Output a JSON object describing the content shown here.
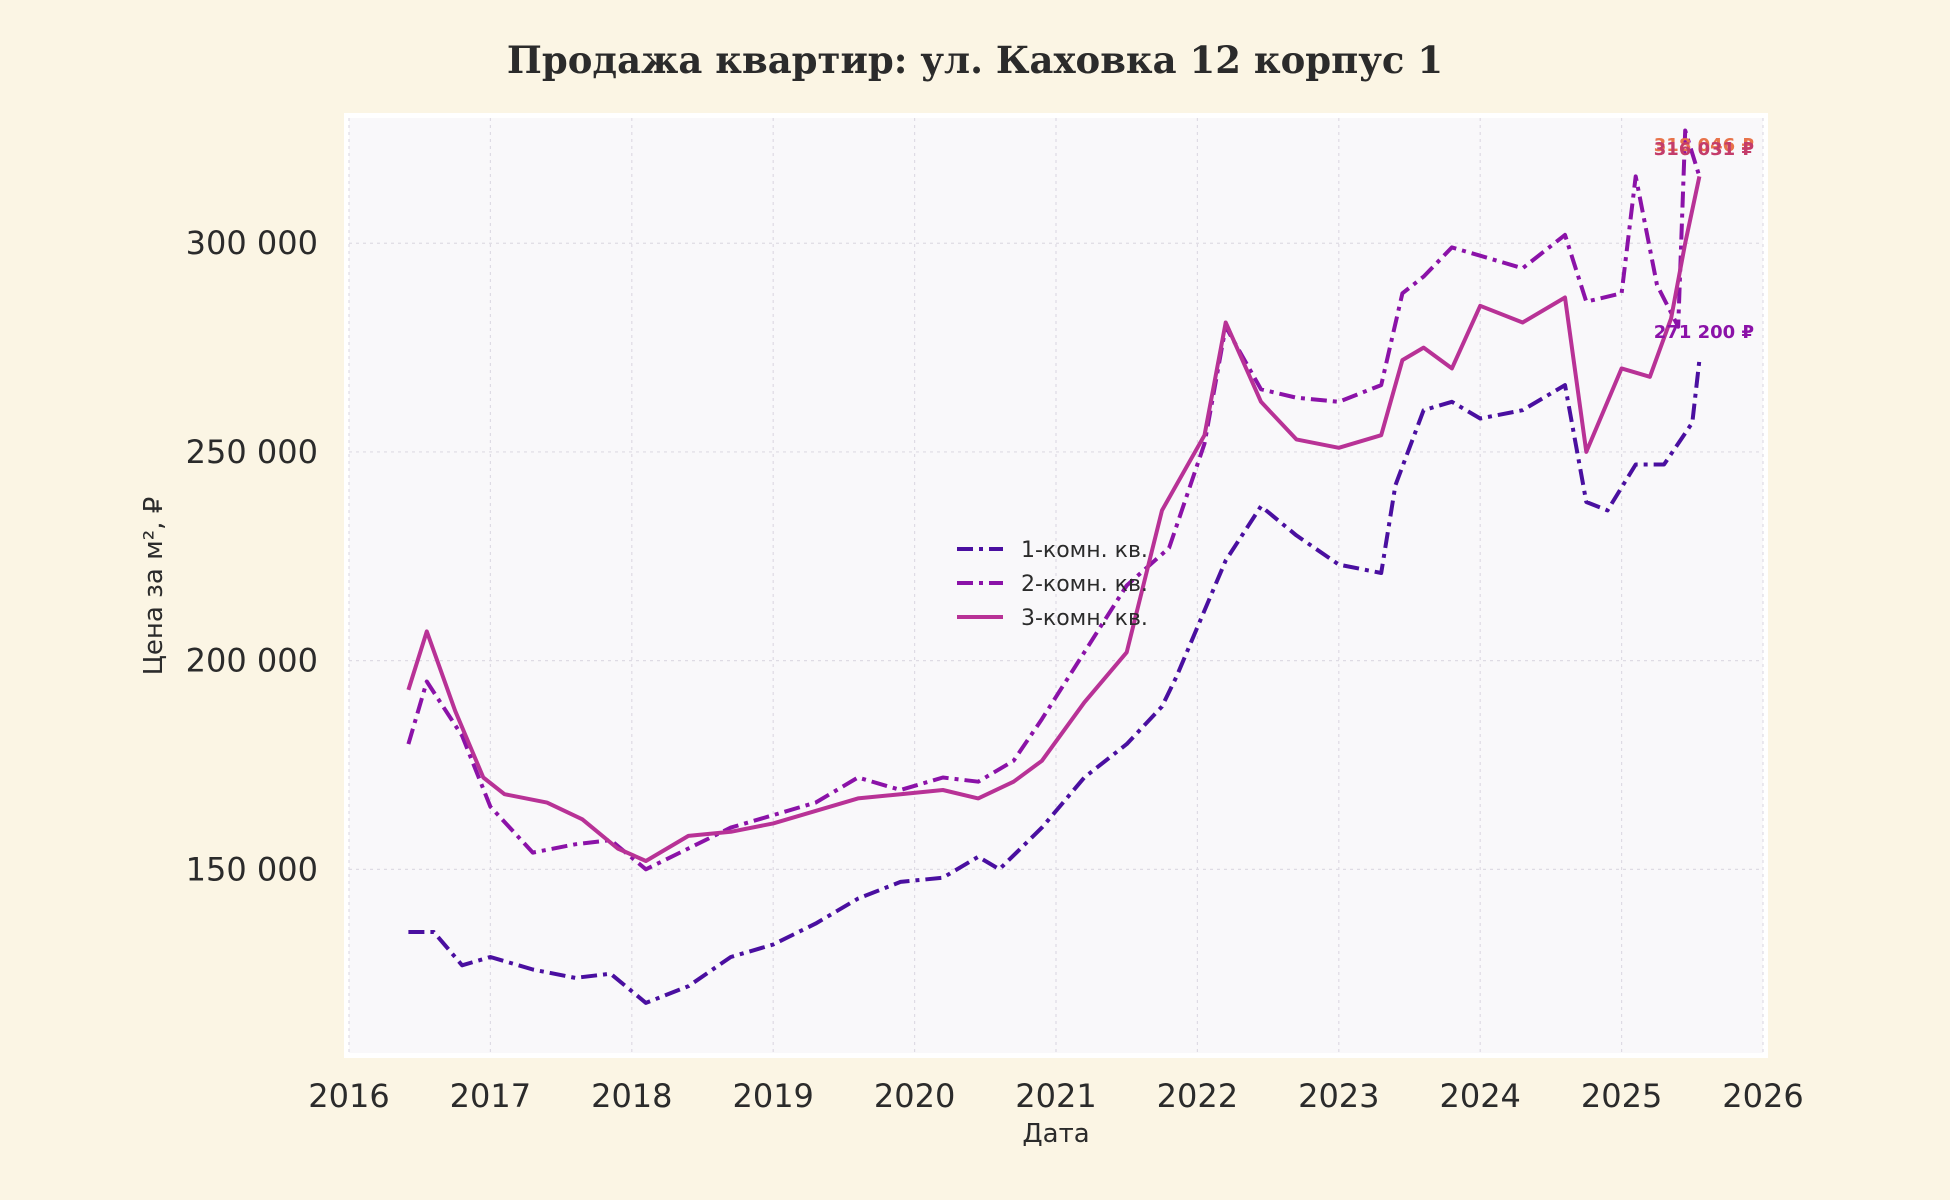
{
  "chart_data": {
    "type": "line",
    "title": "Продажа квартир: ул. Каховка 12 корпус 1",
    "xlabel": "Дата",
    "ylabel": "Цена за м², ₽",
    "xlim": [
      2016,
      2026
    ],
    "ylim": [
      106000,
      330000
    ],
    "x_ticks": [
      2016,
      2017,
      2018,
      2019,
      2020,
      2021,
      2022,
      2023,
      2024,
      2025,
      2026
    ],
    "y_ticks": [
      150000,
      200000,
      250000,
      300000
    ],
    "y_tick_labels": [
      "150 000",
      "200 000",
      "250 000",
      "300 000"
    ],
    "grid": true,
    "legend_position": "center",
    "series": [
      {
        "name": "1-комн. кв.",
        "color": "#4a0fa0",
        "dash": "dashdot",
        "x": [
          2016.42,
          2016.6,
          2016.8,
          2017.0,
          2017.3,
          2017.6,
          2017.85,
          2018.1,
          2018.4,
          2018.7,
          2019.0,
          2019.3,
          2019.6,
          2019.9,
          2020.2,
          2020.45,
          2020.6,
          2020.9,
          2021.2,
          2021.5,
          2021.75,
          2021.85,
          2022.05,
          2022.2,
          2022.45,
          2022.7,
          2023.0,
          2023.3,
          2023.4,
          2023.6,
          2023.8,
          2024.0,
          2024.3,
          2024.6,
          2024.75,
          2024.9,
          2025.1,
          2025.3,
          2025.5,
          2025.55
        ],
        "y": [
          135000,
          135000,
          127000,
          129000,
          126000,
          124000,
          125000,
          118000,
          122000,
          129000,
          132000,
          137000,
          143000,
          147000,
          148000,
          153000,
          150000,
          160000,
          172000,
          180000,
          189000,
          196000,
          212000,
          224000,
          237000,
          230000,
          223000,
          221000,
          242000,
          260000,
          262000,
          258000,
          260000,
          266000,
          238000,
          236000,
          247000,
          247000,
          257000,
          272000
        ]
      },
      {
        "name": "2-комн. кв.",
        "color": "#8b12a8",
        "dash": "dashdot",
        "x": [
          2016.42,
          2016.55,
          2016.8,
          2017.0,
          2017.3,
          2017.6,
          2017.85,
          2018.1,
          2018.4,
          2018.7,
          2019.0,
          2019.3,
          2019.6,
          2019.9,
          2020.2,
          2020.45,
          2020.7,
          2020.9,
          2021.2,
          2021.5,
          2021.8,
          2022.05,
          2022.2,
          2022.45,
          2022.7,
          2023.0,
          2023.3,
          2023.45,
          2023.6,
          2023.8,
          2024.0,
          2024.3,
          2024.6,
          2024.75,
          2025.0,
          2025.1,
          2025.25,
          2025.4,
          2025.45,
          2025.55
        ],
        "y": [
          180000,
          195000,
          182000,
          165000,
          154000,
          156000,
          157000,
          150000,
          155000,
          160000,
          163000,
          166000,
          172000,
          169000,
          172000,
          171000,
          176000,
          186000,
          202000,
          218000,
          227000,
          252000,
          280000,
          265000,
          263000,
          262000,
          266000,
          288000,
          292000,
          299000,
          297000,
          294000,
          302000,
          286000,
          288000,
          316000,
          290000,
          280000,
          327000,
          316000
        ]
      },
      {
        "name": "3-комн. кв.",
        "color": "#b83296",
        "dash": "solid",
        "x": [
          2016.42,
          2016.55,
          2016.75,
          2016.95,
          2017.1,
          2017.4,
          2017.65,
          2017.9,
          2018.1,
          2018.4,
          2018.7,
          2019.0,
          2019.3,
          2019.6,
          2019.9,
          2020.2,
          2020.45,
          2020.7,
          2020.9,
          2021.2,
          2021.5,
          2021.75,
          2022.05,
          2022.2,
          2022.45,
          2022.7,
          2023.0,
          2023.3,
          2023.45,
          2023.6,
          2023.8,
          2024.0,
          2024.3,
          2024.6,
          2024.75,
          2025.0,
          2025.2,
          2025.35,
          2025.45,
          2025.55
        ],
        "y": [
          193000,
          207000,
          188000,
          172000,
          168000,
          166000,
          162000,
          155000,
          152000,
          158000,
          159000,
          161000,
          164000,
          167000,
          168000,
          169000,
          167000,
          171000,
          176000,
          190000,
          202000,
          236000,
          254000,
          281000,
          262000,
          253000,
          251000,
          254000,
          272000,
          275000,
          270000,
          285000,
          281000,
          287000,
          250000,
          270000,
          268000,
          282000,
          300000,
          316000
        ]
      }
    ],
    "end_labels": [
      {
        "text": "318 046 ₽",
        "color": "#e8734a"
      },
      {
        "text": "316 031 ₽",
        "color": "#c43c6a"
      },
      {
        "text": "271 200 ₽",
        "color": "#8b12a8"
      }
    ]
  }
}
